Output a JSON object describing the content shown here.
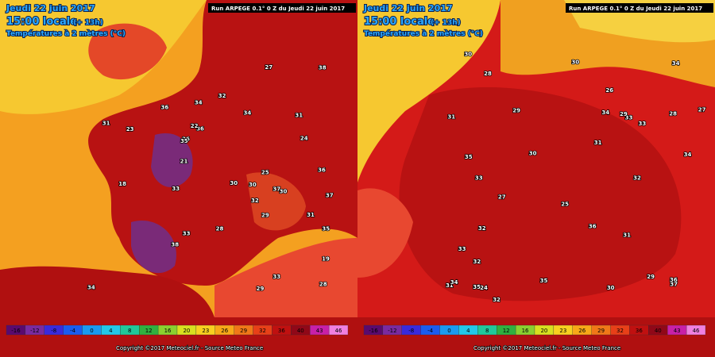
{
  "panels": [
    {
      "date": "Jeudi 22 juin 2017",
      "time": "15:00 locale",
      "offset": "(+ 13h)",
      "field": "Températures à 2 mètres (°C)",
      "run": "Run ARPEGE 0.1° 0 Z du Jeudi 22 juin 2017",
      "copyright": "Copyright ©2017 Meteociel.fr - Source Meteo France",
      "temperature_labels": [
        "34",
        "36",
        "37",
        "38",
        "30",
        "29",
        "31",
        "33",
        "27",
        "25",
        "19",
        "18",
        "35",
        "32",
        "28",
        "26",
        "24",
        "23",
        "36",
        "37",
        "33",
        "31",
        "30",
        "34",
        "38",
        "35",
        "29",
        "32",
        "22",
        "21",
        "33",
        "34",
        "36",
        "31",
        "30",
        "28"
      ]
    },
    {
      "date": "Jeudi 22 juin 2017",
      "time": "15:00 locale",
      "offset": "(+ 13h)",
      "field": "Températures à 2 mètres (°C)",
      "run": "Run ARPEGE 0.1° 0 Z du Jeudi 22 juin 2017",
      "copyright": "Copyright ©2017 Meteociel.fr - Source Meteo France",
      "temperature_labels": [
        "34",
        "33",
        "31",
        "30",
        "29",
        "32",
        "35",
        "28",
        "27",
        "26",
        "25",
        "24",
        "36",
        "37",
        "33",
        "31",
        "30",
        "34",
        "32",
        "29",
        "28",
        "35",
        "33",
        "31",
        "30",
        "34",
        "32",
        "36",
        "29",
        "27",
        "33",
        "31",
        "30",
        "35",
        "32",
        "34"
      ]
    }
  ],
  "colorbar": {
    "labels": [
      "-16",
      "-12",
      "-8",
      "-4",
      "0",
      "4",
      "8",
      "12",
      "16",
      "20",
      "23",
      "26",
      "29",
      "32",
      "36",
      "40",
      "43",
      "46"
    ],
    "colors": [
      "#5a0a6e",
      "#7a2aa0",
      "#3a2adc",
      "#1a5cf0",
      "#1a9af0",
      "#22c8e8",
      "#20c89a",
      "#30b040",
      "#8ad030",
      "#d8e020",
      "#f8d020",
      "#f8a818",
      "#f07818",
      "#e84018",
      "#c01010",
      "#900818",
      "#c820a8",
      "#f080e0"
    ]
  }
}
